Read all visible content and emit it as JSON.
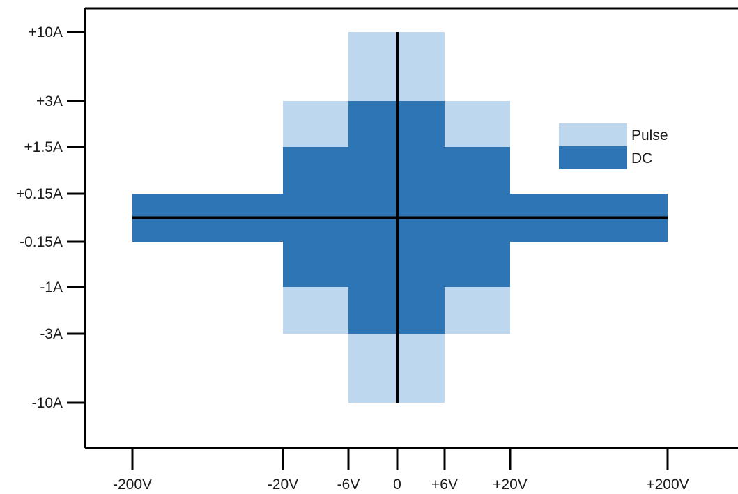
{
  "chart_data": {
    "type": "area",
    "x_ticks": [
      {
        "value": -200,
        "label": "-200V"
      },
      {
        "value": -20,
        "label": "-20V"
      },
      {
        "value": -6,
        "label": "-6V"
      },
      {
        "value": 0,
        "label": "0"
      },
      {
        "value": 6,
        "label": "+6V"
      },
      {
        "value": 20,
        "label": "+20V"
      },
      {
        "value": 200,
        "label": "+200V"
      }
    ],
    "y_ticks": [
      {
        "value": 10,
        "label": "+10A"
      },
      {
        "value": 3,
        "label": "+3A"
      },
      {
        "value": 1.5,
        "label": "+1.5A"
      },
      {
        "value": 0.15,
        "label": "+0.15A"
      },
      {
        "value": -0.15,
        "label": "-0.15A"
      },
      {
        "value": -1,
        "label": "-1A"
      },
      {
        "value": -3,
        "label": "-3A"
      },
      {
        "value": -10,
        "label": "-10A"
      }
    ],
    "series": [
      {
        "name": "Pulse",
        "color": "#bdd7ee",
        "regions": [
          {
            "v": [
              -6,
              6
            ],
            "i": [
              -10,
              10
            ]
          },
          {
            "v": [
              -20,
              20
            ],
            "i": [
              -3,
              3
            ]
          }
        ]
      },
      {
        "name": "DC",
        "color": "#2e75b6",
        "regions": [
          {
            "v": [
              -200,
              200
            ],
            "i": [
              -0.15,
              0.15
            ]
          },
          {
            "v": [
              -20,
              20
            ],
            "i": [
              -1,
              1.5
            ]
          },
          {
            "v": [
              -6,
              6
            ],
            "i": [
              -3,
              3
            ]
          }
        ]
      }
    ],
    "legend": {
      "placement": "top-right"
    },
    "grid": false,
    "xlim": [
      -200,
      200
    ],
    "ylim": [
      -10,
      10
    ]
  }
}
